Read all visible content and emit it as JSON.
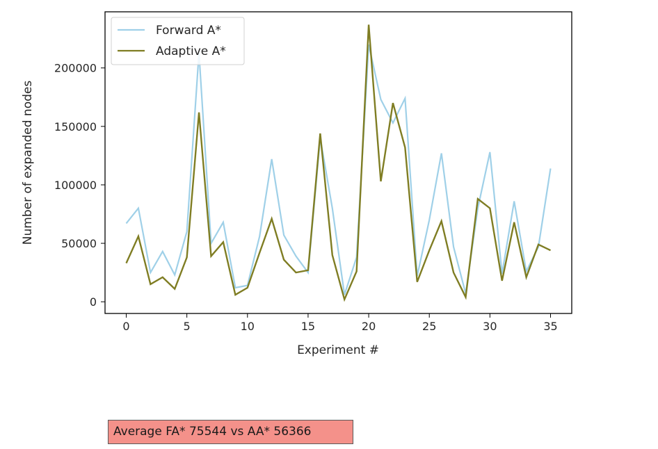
{
  "chart_data": {
    "type": "line",
    "xlabel": "Experiment #",
    "ylabel": "Number of expanded nodes",
    "xlim": [
      -1.75,
      36.75
    ],
    "ylim": [
      -10000,
      248000
    ],
    "xticks": [
      0,
      5,
      10,
      15,
      20,
      25,
      30,
      35
    ],
    "yticks": [
      0,
      50000,
      100000,
      150000,
      200000
    ],
    "grid": false,
    "legend": "top-left",
    "series": [
      {
        "name": "Forward A*",
        "color": "#9fd0e8",
        "x": [
          0,
          1,
          2,
          3,
          4,
          5,
          6,
          7,
          8,
          9,
          10,
          11,
          12,
          13,
          14,
          15,
          16,
          17,
          18,
          19,
          20,
          21,
          22,
          23,
          24,
          25,
          26,
          27,
          28,
          29,
          30,
          31,
          32,
          33,
          34,
          35
        ],
        "values": [
          67000,
          80000,
          25000,
          43000,
          23000,
          60000,
          213000,
          50000,
          68000,
          12000,
          14000,
          56000,
          122000,
          57000,
          39000,
          25000,
          140000,
          80000,
          6000,
          38000,
          220000,
          173000,
          153000,
          174000,
          22000,
          70000,
          127000,
          47000,
          7000,
          80000,
          128000,
          24000,
          86000,
          26000,
          47000,
          114000
        ]
      },
      {
        "name": "Adaptive A*",
        "color": "#7f7d23",
        "x": [
          0,
          1,
          2,
          3,
          4,
          5,
          6,
          7,
          8,
          9,
          10,
          11,
          12,
          13,
          14,
          15,
          16,
          17,
          18,
          19,
          20,
          21,
          22,
          23,
          24,
          25,
          26,
          27,
          28,
          29,
          30,
          31,
          32,
          33,
          34,
          35
        ],
        "values": [
          33000,
          56000,
          15000,
          21000,
          11000,
          38000,
          162000,
          39000,
          51000,
          6000,
          12000,
          42000,
          71000,
          36000,
          25000,
          27000,
          144000,
          40000,
          2000,
          26000,
          237000,
          103000,
          170000,
          132000,
          17000,
          44000,
          69000,
          25000,
          4000,
          88000,
          80000,
          18000,
          68000,
          21000,
          49000,
          44000
        ]
      }
    ]
  },
  "summary": {
    "text": "Average FA* 75544 vs AA* 56366"
  }
}
